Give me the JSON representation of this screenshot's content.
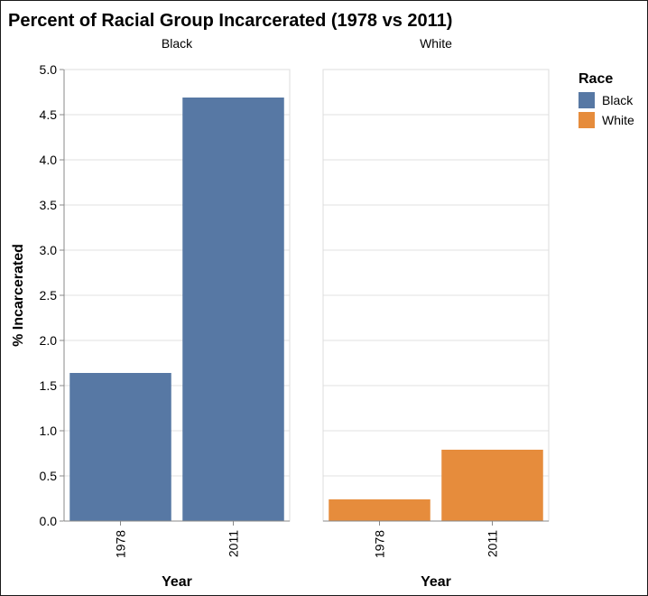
{
  "chart_data": {
    "type": "bar",
    "title": "Percent of Racial Group Incarcerated (1978 vs 2011)",
    "xlabel": "Year",
    "ylabel": "% Incarcerated",
    "ylim": [
      0,
      5
    ],
    "y_ticks": [
      "0.0",
      "0.5",
      "1.0",
      "1.5",
      "2.0",
      "2.5",
      "3.0",
      "3.5",
      "4.0",
      "4.5",
      "5.0"
    ],
    "grid": true,
    "categories": [
      "1978",
      "2011"
    ],
    "facets": [
      {
        "name": "Black",
        "color": "#5778a4",
        "values": [
          1.64,
          4.69
        ]
      },
      {
        "name": "White",
        "color": "#e68c3c",
        "values": [
          0.24,
          0.79
        ]
      }
    ],
    "legend": {
      "title": "Race",
      "placement": "right",
      "items": [
        {
          "label": "Black",
          "color": "#5778a4"
        },
        {
          "label": "White",
          "color": "#e68c3c"
        }
      ]
    }
  }
}
